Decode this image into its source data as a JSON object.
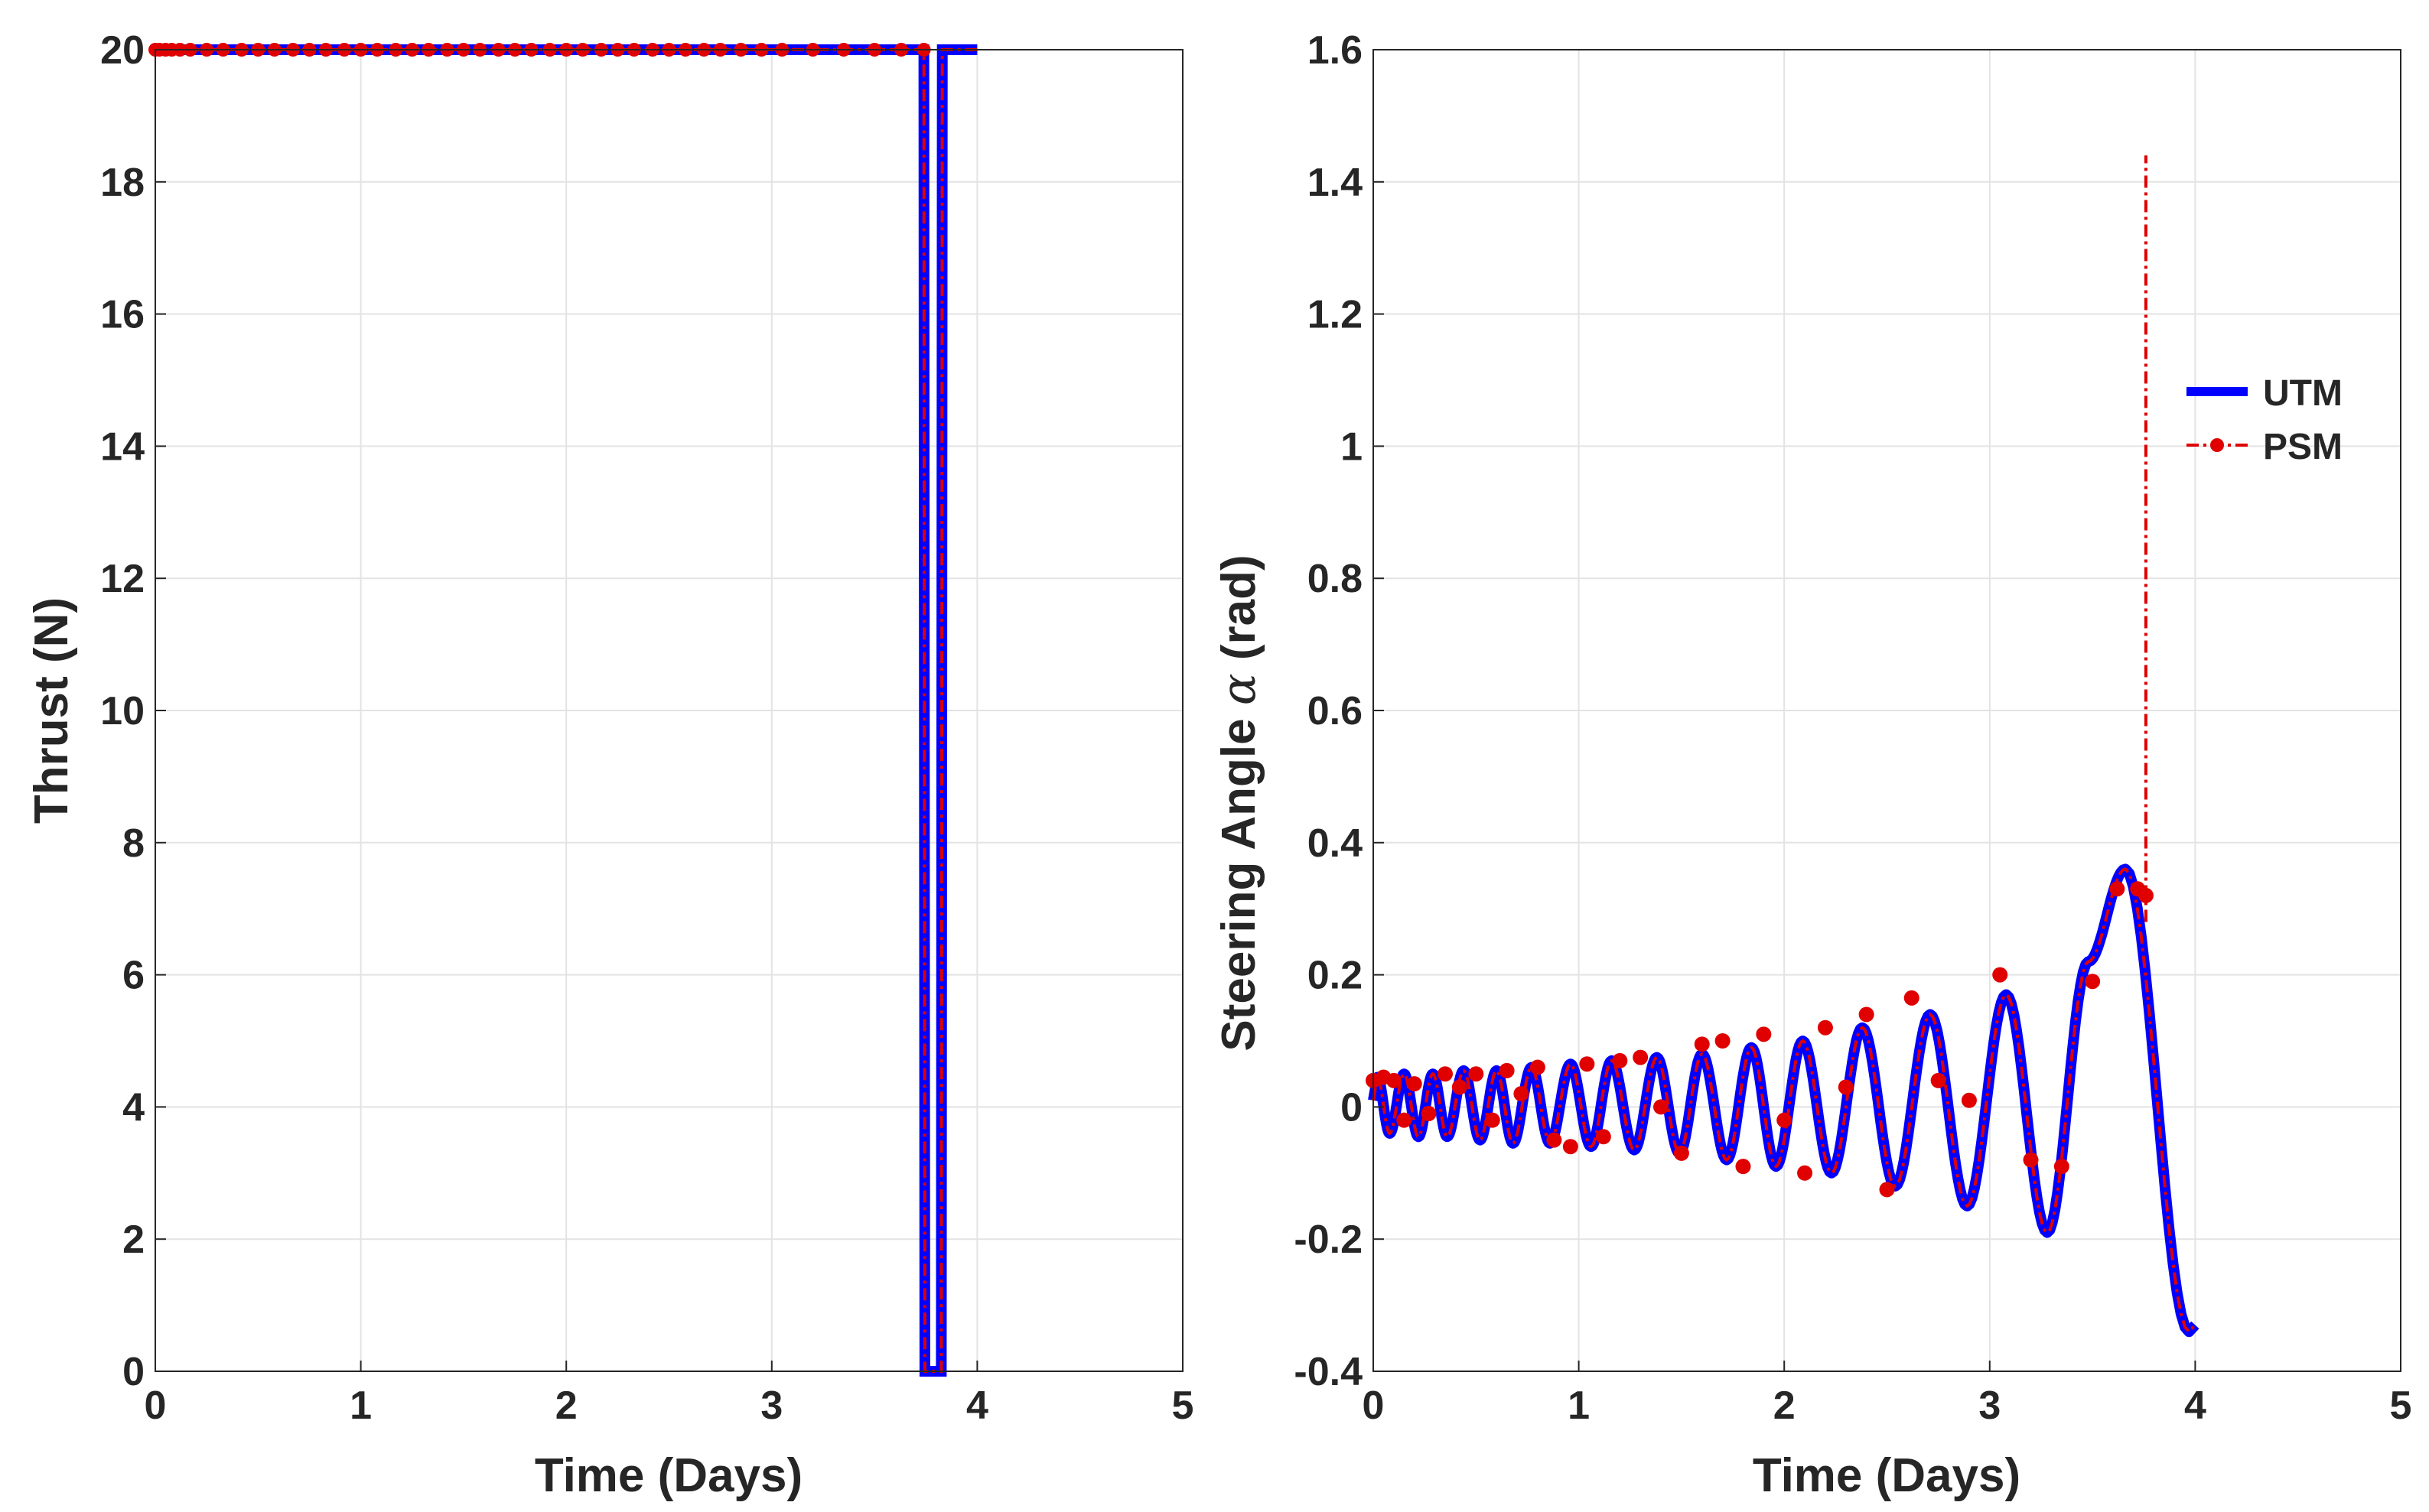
{
  "chart_data": [
    {
      "type": "line",
      "xlabel": "Time (Days)",
      "ylabel": "Thrust (N)",
      "xlim": [
        0,
        5
      ],
      "ylim": [
        0,
        20
      ],
      "xticks": [
        0,
        1,
        2,
        3,
        4,
        5
      ],
      "yticks": [
        0,
        2,
        4,
        6,
        8,
        10,
        12,
        14,
        16,
        18,
        20
      ],
      "grid": true,
      "series": [
        {
          "name": "UTM",
          "color": "#0000ff",
          "style": "solid",
          "x": [
            0,
            3.74,
            3.745,
            3.825,
            3.83,
            4.0
          ],
          "y": [
            20,
            20,
            0,
            0,
            20,
            20
          ]
        },
        {
          "name": "PSM",
          "color": "#e00000",
          "style": "dash-dot",
          "x": [
            0,
            3.74,
            3.745,
            3.825,
            3.83,
            4.0
          ],
          "y": [
            20,
            20,
            0,
            0,
            20,
            20
          ],
          "marker_x": [
            0,
            0.02,
            0.05,
            0.08,
            0.12,
            0.17,
            0.25,
            0.33,
            0.42,
            0.5,
            0.58,
            0.67,
            0.75,
            0.83,
            0.92,
            1.0,
            1.08,
            1.17,
            1.25,
            1.33,
            1.42,
            1.5,
            1.58,
            1.67,
            1.75,
            1.83,
            1.92,
            2.0,
            2.08,
            2.17,
            2.25,
            2.33,
            2.42,
            2.5,
            2.58,
            2.67,
            2.75,
            2.85,
            2.95,
            3.05,
            3.2,
            3.35,
            3.5,
            3.63,
            3.74
          ],
          "marker_y": 20
        }
      ]
    },
    {
      "type": "line",
      "xlabel": "Time (Days)",
      "ylabel_prefix": "Steering Angle ",
      "ylabel_symbol": "α",
      "ylabel_suffix": " (rad)",
      "xlim": [
        0,
        5
      ],
      "ylim": [
        -0.4,
        1.6
      ],
      "xticks": [
        0,
        1,
        2,
        3,
        4,
        5
      ],
      "yticks": [
        -0.4,
        -0.2,
        0,
        0.2,
        0.4,
        0.6,
        0.8,
        1,
        1.2,
        1.4,
        1.6
      ],
      "ytick_labels": [
        "-0.4",
        "-0.2",
        "0",
        "0.2",
        "0.4",
        "0.6",
        "0.8",
        "1",
        "1.2",
        "1.4",
        "1.6"
      ],
      "grid": true,
      "legend": {
        "position": "right",
        "items": [
          {
            "label": "UTM",
            "color": "#0000ff",
            "style": "solid"
          },
          {
            "label": "PSM",
            "color": "#e00000",
            "style": "dash-dot"
          }
        ]
      },
      "oscillation": {
        "period_extrema_days": [
          0.02,
          0.08,
          0.15,
          0.22,
          0.29,
          0.36,
          0.44,
          0.52,
          0.6,
          0.68,
          0.77,
          0.86,
          0.96,
          1.06,
          1.16,
          1.27,
          1.38,
          1.49,
          1.6,
          1.72,
          1.84,
          1.96,
          2.09,
          2.23,
          2.38,
          2.54,
          2.71,
          2.89,
          3.08,
          3.28,
          3.48,
          3.66,
          3.97
        ],
        "extrema_values": [
          0.045,
          -0.04,
          0.05,
          -0.045,
          0.05,
          -0.045,
          0.055,
          -0.05,
          0.055,
          -0.055,
          0.06,
          -0.055,
          0.065,
          -0.06,
          0.07,
          -0.065,
          0.075,
          -0.07,
          0.08,
          -0.08,
          0.09,
          -0.09,
          0.1,
          -0.1,
          0.12,
          -0.12,
          0.14,
          -0.15,
          0.17,
          -0.19,
          0.22,
          0.36,
          -0.34
        ]
      },
      "utm_end": [
        4.0,
        -0.33
      ],
      "psm_spike": {
        "x": 3.76,
        "from": 0.28,
        "to": 1.44
      },
      "psm_markers": {
        "x": [
          0.0,
          0.05,
          0.1,
          0.15,
          0.2,
          0.27,
          0.35,
          0.42,
          0.5,
          0.58,
          0.65,
          0.72,
          0.8,
          0.88,
          0.96,
          1.04,
          1.12,
          1.2,
          1.3,
          1.4,
          1.5,
          1.6,
          1.7,
          1.8,
          1.9,
          2.0,
          2.1,
          2.2,
          2.3,
          2.4,
          2.5,
          2.62,
          2.75,
          2.9,
          3.05,
          3.2,
          3.35,
          3.5,
          3.62,
          3.72,
          3.76
        ],
        "y": [
          0.04,
          0.045,
          0.04,
          -0.02,
          0.035,
          -0.01,
          0.05,
          0.03,
          0.05,
          -0.02,
          0.055,
          0.02,
          0.06,
          -0.05,
          -0.06,
          0.065,
          -0.045,
          0.07,
          0.075,
          0.0,
          -0.07,
          0.095,
          0.1,
          -0.09,
          0.11,
          -0.02,
          -0.1,
          0.12,
          0.03,
          0.14,
          -0.125,
          0.165,
          0.04,
          0.01,
          0.2,
          -0.08,
          -0.09,
          0.19,
          0.33,
          0.33,
          0.32
        ]
      }
    }
  ]
}
